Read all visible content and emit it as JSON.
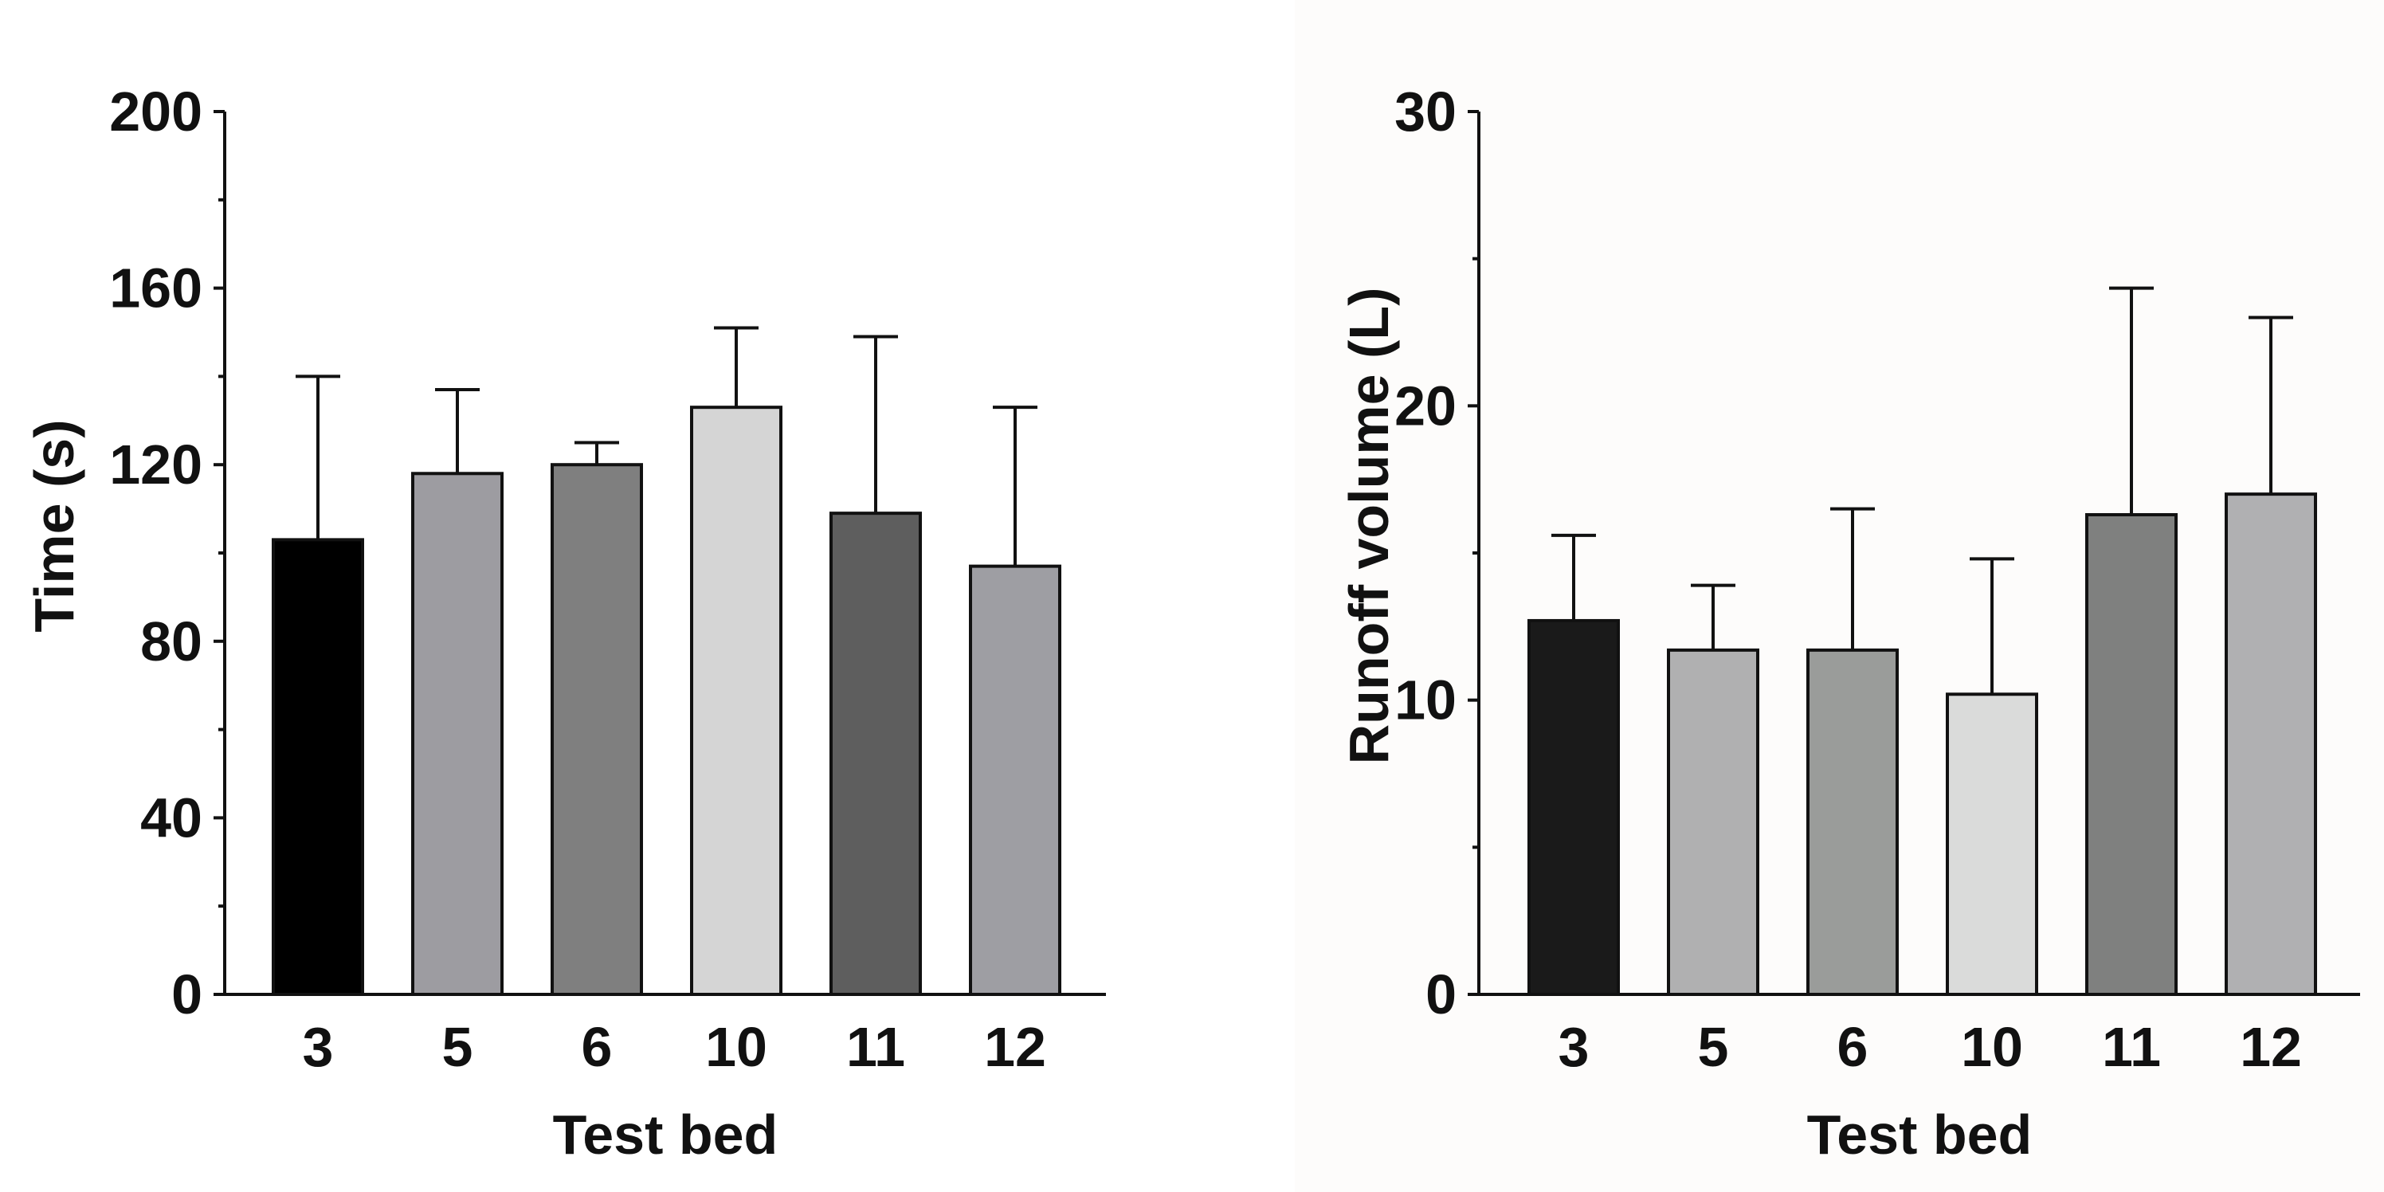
{
  "chart_data": [
    {
      "type": "bar",
      "title": "",
      "xlabel": "Test bed",
      "ylabel": "Time (s)",
      "categories": [
        "3",
        "5",
        "6",
        "10",
        "11",
        "12"
      ],
      "values": [
        103,
        118,
        120,
        133,
        109,
        97
      ],
      "error_upper": [
        140,
        137,
        125,
        151,
        149,
        133
      ],
      "bar_colors": [
        "#000000",
        "#9d9ca1",
        "#7f7f7f",
        "#d5d5d5",
        "#5e5e5e",
        "#9e9ea3"
      ],
      "ylim": [
        0,
        200
      ],
      "yticks": [
        0,
        40,
        80,
        120,
        160,
        200
      ],
      "yticks_minor": [
        20,
        60,
        100,
        140,
        180
      ]
    },
    {
      "type": "bar",
      "title": "",
      "xlabel": "Test bed",
      "ylabel": "Runoff volume (L)",
      "categories": [
        "3",
        "5",
        "6",
        "10",
        "11",
        "12"
      ],
      "values": [
        12.7,
        11.7,
        11.7,
        10.2,
        16.3,
        17.0
      ],
      "error_upper": [
        15.6,
        13.9,
        16.5,
        14.8,
        24.0,
        23.0
      ],
      "bar_colors": [
        "#1a1a1a",
        "#b0b0b1",
        "#9a9c9a",
        "#dadbda",
        "#7f807f",
        "#b0b0b2"
      ],
      "ylim": [
        0,
        30
      ],
      "yticks": [
        0,
        10,
        20,
        30
      ],
      "yticks_minor": [
        5,
        15,
        25
      ]
    }
  ]
}
